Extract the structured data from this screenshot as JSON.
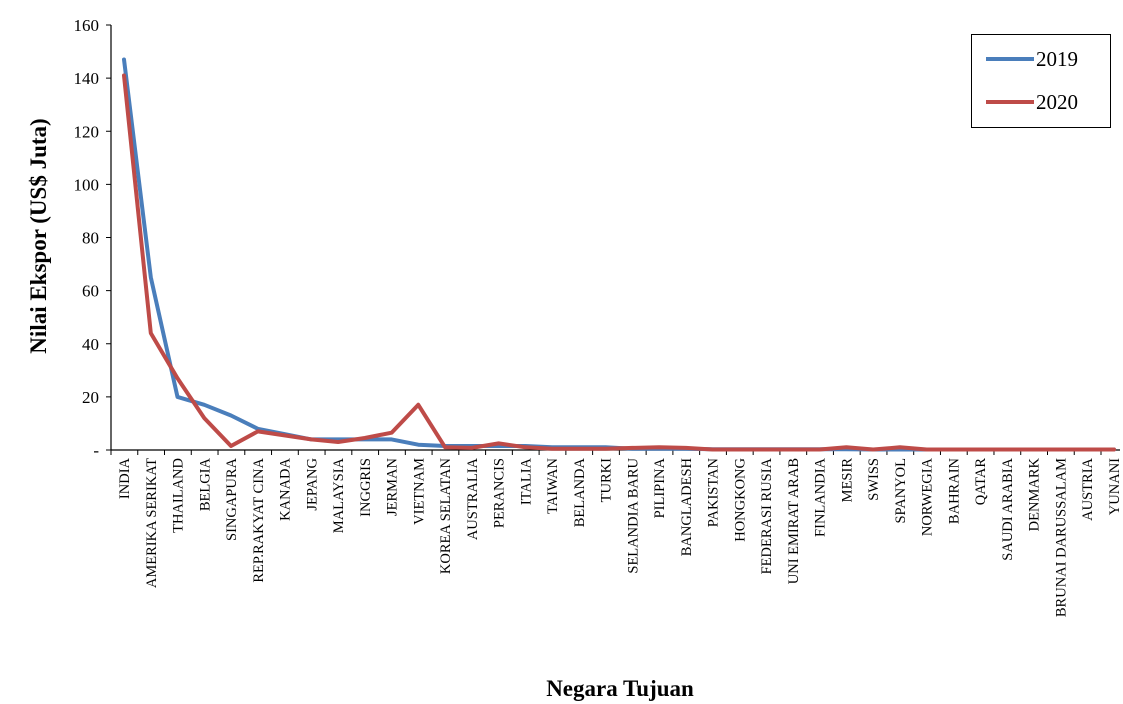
{
  "chart_data": {
    "type": "line",
    "title": "",
    "xlabel": "Negara Tujuan",
    "ylabel": "Nilai Ekspor (US$ Juta)",
    "ylim": [
      0,
      160
    ],
    "yticks": [
      {
        "value": 0,
        "label": "-"
      },
      {
        "value": 20,
        "label": "20"
      },
      {
        "value": 40,
        "label": "40"
      },
      {
        "value": 60,
        "label": "60"
      },
      {
        "value": 80,
        "label": "80"
      },
      {
        "value": 100,
        "label": "100"
      },
      {
        "value": 120,
        "label": "120"
      },
      {
        "value": 140,
        "label": "140"
      },
      {
        "value": 160,
        "label": "160"
      }
    ],
    "grid": false,
    "legend_position": "top-right",
    "categories": [
      "INDIA",
      "AMERIKA SERIKAT",
      "THAILAND",
      "BELGIA",
      "SINGAPURA",
      "REP.RAKYAT CINA",
      "KANADA",
      "JEPANG",
      "MALAYSIA",
      "INGGRIS",
      "JERMAN",
      "VIETNAM",
      "KOREA SELATAN",
      "AUSTRALIA",
      "PERANCIS",
      "ITALIA",
      "TAIWAN",
      "BELANDA",
      "TURKI",
      "SELANDIA BARU",
      "PILIPINA",
      "BANGLADESH",
      "PAKISTAN",
      "HONGKONG",
      "FEDERASI RUSIA",
      "UNI EMIRAT ARAB",
      "FINLANDIA",
      "MESIR",
      "SWISS",
      "SPANYOL",
      "NORWEGIA",
      "BAHRAIN",
      "QATAR",
      "SAUDI ARABIA",
      "DENMARK",
      "BRUNAI DARUSSALAM",
      "AUSTRIA",
      "YUNANI"
    ],
    "series": [
      {
        "name": "2019",
        "color": "#4a7ebb",
        "values": [
          147,
          65,
          20,
          17,
          13,
          8,
          6,
          4,
          4,
          4,
          4,
          2,
          1.5,
          1.5,
          1.5,
          1.5,
          1,
          1,
          1,
          0.5,
          0.5,
          0.5,
          0.3,
          0.3,
          0.3,
          0.3,
          0.3,
          0.3,
          0.2,
          0.2,
          0.2,
          0.2,
          0.2,
          0.2,
          0.2,
          0.2,
          0.2,
          0.2
        ]
      },
      {
        "name": "2020",
        "color": "#be4b48",
        "values": [
          141,
          44,
          27,
          12,
          1.5,
          7,
          5.5,
          4,
          3,
          4.5,
          6.5,
          17,
          1,
          0.8,
          2.5,
          1,
          0.5,
          0.5,
          0.5,
          0.8,
          1,
          0.8,
          0.2,
          0.2,
          0.2,
          0.2,
          0.2,
          1,
          0.2,
          1,
          0.2,
          0.2,
          0.2,
          0.2,
          0.2,
          0.2,
          0.2,
          0.2
        ]
      }
    ]
  }
}
